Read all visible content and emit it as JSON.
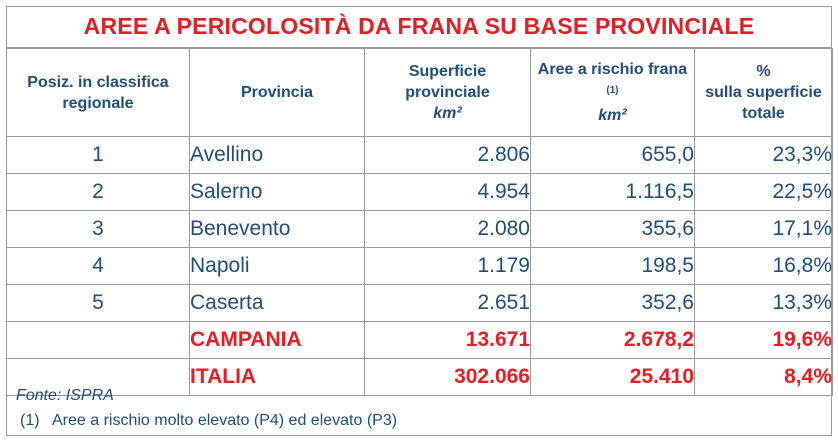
{
  "title": "AREE A PERICOLOSITÀ DA FRANA SU BASE PROVINCIALE",
  "header": {
    "rank": "Posiz. in classifica regionale",
    "province": "Provincia",
    "surface": "Superficie provinciale",
    "surface_unit": "km²",
    "risk": "Aree a rischio frana",
    "risk_note_ref": "(1)",
    "risk_unit": "km²",
    "pct_symbol": "%",
    "pct_label": "sulla superficie totale"
  },
  "rows": [
    {
      "rank": "1",
      "province": "Avellino",
      "surface": "2.806",
      "risk": "655,0",
      "pct": "23,3%"
    },
    {
      "rank": "2",
      "province": "Salerno",
      "surface": "4.954",
      "risk": "1.116,5",
      "pct": "22,5%"
    },
    {
      "rank": "3",
      "province": "Benevento",
      "surface": "2.080",
      "risk": "355,6",
      "pct": "17,1%"
    },
    {
      "rank": "4",
      "province": "Napoli",
      "surface": "1.179",
      "risk": "198,5",
      "pct": "16,8%"
    },
    {
      "rank": "5",
      "province": "Caserta",
      "surface": "2.651",
      "risk": "352,6",
      "pct": "13,3%"
    }
  ],
  "totals": [
    {
      "rank": "",
      "province": "CAMPANIA",
      "surface": "13.671",
      "risk": "2.678,2",
      "pct": "19,6%"
    },
    {
      "rank": "",
      "province": "ITALIA",
      "surface": "302.066",
      "risk": "25.410",
      "pct": "8,4%"
    }
  ],
  "source": "Fonte: ISPRA",
  "note": {
    "number": "(1)",
    "text": "Aree a rischio molto elevato (P4) ed elevato (P3)"
  },
  "colors": {
    "title": "#e31e24",
    "text": "#1f4e79",
    "totals": "#e31e24",
    "border": "#9a9a9a"
  }
}
